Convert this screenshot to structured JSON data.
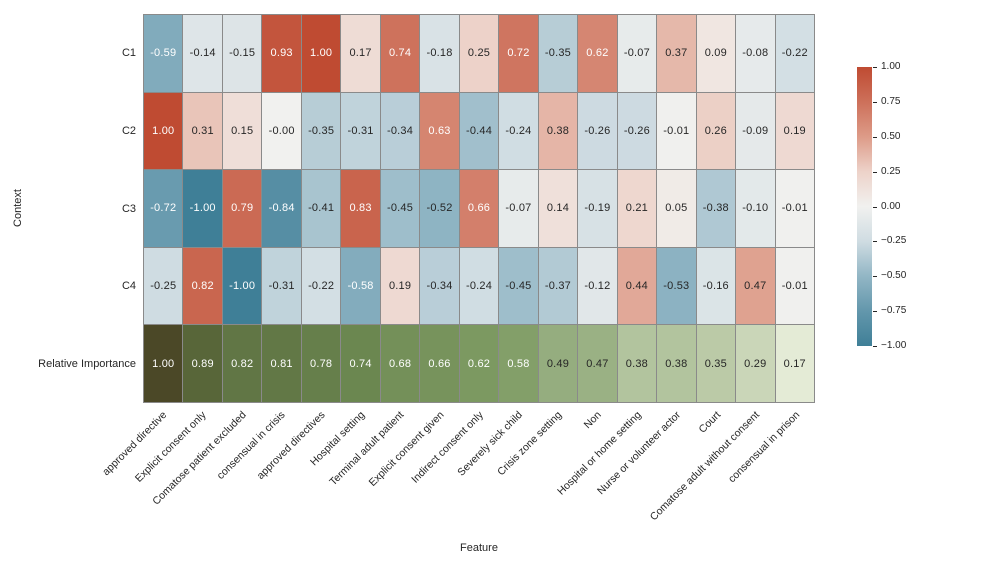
{
  "chart_data": {
    "type": "heatmap",
    "title": "",
    "xlabel": "Feature",
    "ylabel": "Context",
    "columns": [
      "approved directive",
      "Explicit consent only",
      "Comatose patient excluded",
      "consensual in crisis",
      "approved directives",
      "Hospital setting",
      "Terminal adult patient",
      "Explicit consent given",
      "Indirect consent only",
      "Severely sick child",
      "Crisis zone setting",
      "Non",
      "Hospital or home setting",
      "Nurse or volunteer actor",
      "Court",
      "Comatose adult without consent",
      "consensual in prison"
    ],
    "rows": [
      {
        "label": "C1",
        "colormap": "diverging",
        "values": [
          "-0.59",
          "-0.14",
          "-0.15",
          "0.93",
          "1.00",
          "0.17",
          "0.74",
          "-0.18",
          "0.25",
          "0.72",
          "-0.35",
          "0.62",
          "-0.07",
          "0.37",
          "0.09",
          "-0.08",
          "-0.22"
        ]
      },
      {
        "label": "C2",
        "colormap": "diverging",
        "values": [
          "1.00",
          "0.31",
          "0.15",
          "-0.00",
          "-0.35",
          "-0.31",
          "-0.34",
          "0.63",
          "-0.44",
          "-0.24",
          "0.38",
          "-0.26",
          "-0.26",
          "-0.01",
          "0.26",
          "-0.09",
          "0.19"
        ]
      },
      {
        "label": "C3",
        "colormap": "diverging",
        "values": [
          "-0.72",
          "-1.00",
          "0.79",
          "-0.84",
          "-0.41",
          "0.83",
          "-0.45",
          "-0.52",
          "0.66",
          "-0.07",
          "0.14",
          "-0.19",
          "0.21",
          "0.05",
          "-0.38",
          "-0.10",
          "-0.01"
        ]
      },
      {
        "label": "C4",
        "colormap": "diverging",
        "values": [
          "-0.25",
          "0.82",
          "-1.00",
          "-0.31",
          "-0.22",
          "-0.58",
          "0.19",
          "-0.34",
          "-0.24",
          "-0.45",
          "-0.37",
          "-0.12",
          "0.44",
          "-0.53",
          "-0.16",
          "0.47",
          "-0.01"
        ]
      },
      {
        "label": "Relative Importance",
        "colormap": "green",
        "values": [
          "1.00",
          "0.89",
          "0.82",
          "0.81",
          "0.78",
          "0.74",
          "0.68",
          "0.66",
          "0.62",
          "0.58",
          "0.49",
          "0.47",
          "0.38",
          "0.38",
          "0.35",
          "0.29",
          "0.17"
        ]
      }
    ],
    "colorbar": {
      "min": -1.0,
      "max": 1.0,
      "tick_labels": [
        "1.00",
        "0.75",
        "0.50",
        "0.25",
        "0.00",
        "−0.25",
        "−0.50",
        "−0.75",
        "−1.00"
      ]
    },
    "colors": {
      "diverging_stops": [
        [
          -1.0,
          "#3f7f97"
        ],
        [
          -0.75,
          "#6397ac"
        ],
        [
          -0.5,
          "#92b6c5"
        ],
        [
          -0.25,
          "#cfdce2"
        ],
        [
          0.0,
          "#f1f1ef"
        ],
        [
          0.25,
          "#edd2c9"
        ],
        [
          0.5,
          "#dd9b88"
        ],
        [
          0.75,
          "#cd705a"
        ],
        [
          1.0,
          "#bf4b32"
        ]
      ],
      "green_stops": [
        [
          0.0,
          "#f3f6ea"
        ],
        [
          0.17,
          "#e4ebd6"
        ],
        [
          0.3,
          "#c8d4b5"
        ],
        [
          0.4,
          "#adc098"
        ],
        [
          0.5,
          "#92ab7c"
        ],
        [
          0.6,
          "#7f9c64"
        ],
        [
          0.75,
          "#6a854f"
        ],
        [
          0.85,
          "#5d7040"
        ],
        [
          0.92,
          "#555f33"
        ],
        [
          1.0,
          "#4b4827"
        ]
      ],
      "grid_line": "#8a8a8a",
      "annotation_dark": "#262626",
      "annotation_light": "#ffffff",
      "background": "#ffffff"
    },
    "annotation_white_threshold": 0.55
  }
}
